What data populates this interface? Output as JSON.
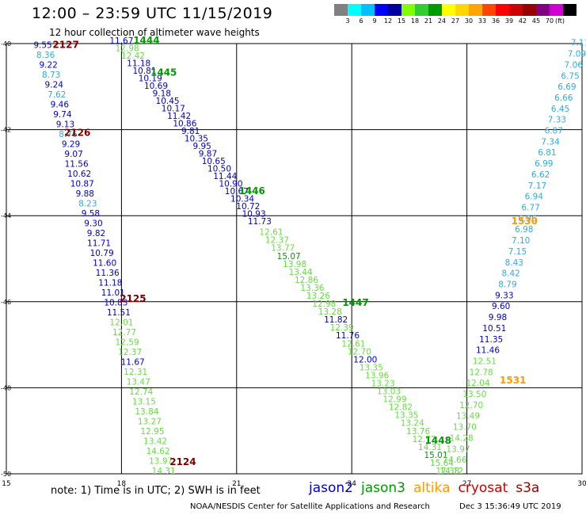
{
  "header": {
    "title": "12:00 – 23:59 UTC 11/15/2019",
    "subtitle": "12 hour collection of altimeter wave heights"
  },
  "colorbar": {
    "colors": [
      "#808080",
      "#00ffff",
      "#00bfff",
      "#0000ff",
      "#0000a0",
      "#7fff00",
      "#32cd32",
      "#009900",
      "#ffff00",
      "#ffd700",
      "#ffa500",
      "#ff4500",
      "#ff0000",
      "#cc0000",
      "#990000",
      "#800080",
      "#d000d0",
      "#000000"
    ],
    "ticks": [
      "3",
      "6",
      "9",
      "12",
      "15",
      "18",
      "21",
      "24",
      "27",
      "30",
      "33",
      "36",
      "39",
      "42",
      "45",
      "70",
      "(ft)"
    ]
  },
  "axes": {
    "x_ticks": [
      "15",
      "18",
      "21",
      "24",
      "27",
      "30"
    ],
    "y_ticks": [
      "-40",
      "-42",
      "-44",
      "-46",
      "-48",
      "-50"
    ],
    "x_range": [
      15,
      30
    ],
    "y_range": [
      -50,
      -40
    ]
  },
  "colors": {
    "jason2": "#0000cc",
    "jason3": "#009900",
    "altika": "#ff9900",
    "cryosat": "#cc0000",
    "s3a": "#990000",
    "light_green": "#66dd44",
    "light_blue": "#33aadd",
    "dark_red": "#7a0000"
  },
  "passes": [
    {
      "label": "2127",
      "lon": 16.55,
      "lat": -40.1,
      "color": "dark_red"
    },
    {
      "label": "2126",
      "lon": 16.85,
      "lat": -42.15,
      "color": "dark_red"
    },
    {
      "label": "2125",
      "lon": 18.3,
      "lat": -46.0,
      "color": "dark_red"
    },
    {
      "label": "2124",
      "lon": 19.6,
      "lat": -49.8,
      "color": "dark_red"
    },
    {
      "label": "1444",
      "lon": 18.65,
      "lat": -40.0,
      "color": "jason3"
    },
    {
      "label": "1445",
      "lon": 19.1,
      "lat": -40.75,
      "color": "jason3"
    },
    {
      "label": "1446",
      "lon": 21.4,
      "lat": -43.5,
      "color": "jason3"
    },
    {
      "label": "1447",
      "lon": 24.1,
      "lat": -46.1,
      "color": "jason3"
    },
    {
      "label": "1448",
      "lon": 26.25,
      "lat": -49.3,
      "color": "jason3"
    },
    {
      "label": "1530",
      "lon": 28.5,
      "lat": -44.2,
      "color": "altika"
    },
    {
      "label": "1531",
      "lon": 28.2,
      "lat": -47.9,
      "color": "altika"
    }
  ],
  "tracks": [
    {
      "name": "s3a-a",
      "start": [
        15.95,
        -40.1
      ],
      "end": [
        19.1,
        -50.0
      ],
      "values": [
        {
          "v": "9.55",
          "c": "jason2"
        },
        {
          "v": "8.36",
          "c": "light_blue"
        },
        {
          "v": "9.22",
          "c": "jason2"
        },
        {
          "v": "8.73",
          "c": "light_blue"
        },
        {
          "v": "9.24",
          "c": "jason2"
        },
        {
          "v": "7.62",
          "c": "light_blue"
        },
        {
          "v": "9.46",
          "c": "jason2"
        },
        {
          "v": "9.74",
          "c": "jason2"
        },
        {
          "v": "9.13",
          "c": "jason2"
        },
        {
          "v": "8.76",
          "c": "light_blue"
        },
        {
          "v": "9.29",
          "c": "jason2"
        },
        {
          "v": "9.07",
          "c": "jason2"
        },
        {
          "v": "11.56",
          "c": "jason2"
        },
        {
          "v": "10.62",
          "c": "jason2"
        },
        {
          "v": "10.87",
          "c": "jason2"
        },
        {
          "v": "9.88",
          "c": "jason2"
        },
        {
          "v": "8.23",
          "c": "light_blue"
        },
        {
          "v": "9.58",
          "c": "jason2"
        },
        {
          "v": "9.30",
          "c": "jason2"
        },
        {
          "v": "9.82",
          "c": "jason2"
        },
        {
          "v": "11.71",
          "c": "jason2"
        },
        {
          "v": "10.79",
          "c": "jason2"
        },
        {
          "v": "11.60",
          "c": "jason2"
        },
        {
          "v": "11.36",
          "c": "jason2"
        },
        {
          "v": "11.18",
          "c": "jason2"
        },
        {
          "v": "11.01",
          "c": "jason2"
        },
        {
          "v": "10.83",
          "c": "jason2"
        },
        {
          "v": "11.51",
          "c": "jason2"
        },
        {
          "v": "12.01",
          "c": "light_green"
        },
        {
          "v": "12.77",
          "c": "light_green"
        },
        {
          "v": "12.59",
          "c": "light_green"
        },
        {
          "v": "12.37",
          "c": "light_green"
        },
        {
          "v": "11.67",
          "c": "jason2"
        },
        {
          "v": "12.31",
          "c": "light_green"
        },
        {
          "v": "13.47",
          "c": "light_green"
        },
        {
          "v": "12.74",
          "c": "light_green"
        },
        {
          "v": "13.15",
          "c": "light_green"
        },
        {
          "v": "13.84",
          "c": "light_green"
        },
        {
          "v": "13.27",
          "c": "light_green"
        },
        {
          "v": "12.95",
          "c": "light_green"
        },
        {
          "v": "13.42",
          "c": "light_green"
        },
        {
          "v": "14.62",
          "c": "light_green"
        },
        {
          "v": "13.97",
          "c": "light_green"
        },
        {
          "v": "14.31",
          "c": "light_green"
        }
      ]
    },
    {
      "name": "jason3-a",
      "start": [
        18.0,
        -40.0
      ],
      "end": [
        21.6,
        -44.2
      ],
      "values": [
        {
          "v": "11.67",
          "c": "jason2"
        },
        {
          "v": "12.98",
          "c": "light_green"
        },
        {
          "v": "12.42",
          "c": "light_green"
        },
        {
          "v": "11.18",
          "c": "jason2"
        },
        {
          "v": "10.81",
          "c": "jason2"
        },
        {
          "v": "10.19",
          "c": "jason2"
        },
        {
          "v": "10.69",
          "c": "jason2"
        },
        {
          "v": "9.18",
          "c": "jason2"
        },
        {
          "v": "10.45",
          "c": "jason2"
        },
        {
          "v": "10.17",
          "c": "jason2"
        },
        {
          "v": "11.42",
          "c": "jason2"
        },
        {
          "v": "10.86",
          "c": "jason2"
        },
        {
          "v": "9.81",
          "c": "jason2"
        },
        {
          "v": "10.35",
          "c": "jason2"
        },
        {
          "v": "9.95",
          "c": "jason2"
        },
        {
          "v": "9.87",
          "c": "jason2"
        },
        {
          "v": "10.65",
          "c": "jason2"
        },
        {
          "v": "10.50",
          "c": "jason2"
        },
        {
          "v": "11.44",
          "c": "jason2"
        },
        {
          "v": "10.90",
          "c": "jason2"
        },
        {
          "v": "10.67",
          "c": "jason2"
        },
        {
          "v": "10.34",
          "c": "jason2"
        },
        {
          "v": "10.72",
          "c": "jason2"
        },
        {
          "v": "10.93",
          "c": "jason2"
        },
        {
          "v": "11.73",
          "c": "jason2"
        }
      ]
    },
    {
      "name": "jason3-b",
      "start": [
        21.9,
        -44.45
      ],
      "end": [
        26.5,
        -50.0
      ],
      "values": [
        {
          "v": "12.61",
          "c": "light_green"
        },
        {
          "v": "12.37",
          "c": "light_green"
        },
        {
          "v": "13.77",
          "c": "light_green"
        },
        {
          "v": "15.07",
          "c": "jason3"
        },
        {
          "v": "13.98",
          "c": "light_green"
        },
        {
          "v": "13.44",
          "c": "light_green"
        },
        {
          "v": "12.86",
          "c": "light_green"
        },
        {
          "v": "13.36",
          "c": "light_green"
        },
        {
          "v": "13.26",
          "c": "light_green"
        },
        {
          "v": "12.98",
          "c": "light_green"
        },
        {
          "v": "13.28",
          "c": "light_green"
        },
        {
          "v": "11.82",
          "c": "jason2"
        },
        {
          "v": "12.39",
          "c": "light_green"
        },
        {
          "v": "11.76",
          "c": "jason2"
        },
        {
          "v": "12.61",
          "c": "light_green"
        },
        {
          "v": "12.70",
          "c": "light_green"
        },
        {
          "v": "12.00",
          "c": "jason2"
        },
        {
          "v": "13.35",
          "c": "light_green"
        },
        {
          "v": "13.96",
          "c": "light_green"
        },
        {
          "v": "13.23",
          "c": "light_green"
        },
        {
          "v": "13.03",
          "c": "light_green"
        },
        {
          "v": "12.99",
          "c": "light_green"
        },
        {
          "v": "12.82",
          "c": "light_green"
        },
        {
          "v": "13.35",
          "c": "light_green"
        },
        {
          "v": "13.24",
          "c": "light_green"
        },
        {
          "v": "13.76",
          "c": "light_green"
        },
        {
          "v": "12.72",
          "c": "light_green"
        },
        {
          "v": "14.31",
          "c": "light_green"
        },
        {
          "v": "15.01",
          "c": "jason3"
        },
        {
          "v": "15.64",
          "c": "light_green"
        },
        {
          "v": "17.38",
          "c": "light_green"
        }
      ]
    },
    {
      "name": "altika-a",
      "start": [
        29.95,
        -40.05
      ],
      "end": [
        26.6,
        -50.0
      ],
      "values": [
        {
          "v": "7.11",
          "c": "light_blue"
        },
        {
          "v": "7.09",
          "c": "light_blue"
        },
        {
          "v": "7.06",
          "c": "light_blue"
        },
        {
          "v": "6.75",
          "c": "light_blue"
        },
        {
          "v": "6.69",
          "c": "light_blue"
        },
        {
          "v": "6.66",
          "c": "light_blue"
        },
        {
          "v": "6.45",
          "c": "light_blue"
        },
        {
          "v": "7.33",
          "c": "light_blue"
        },
        {
          "v": "6.87",
          "c": "light_blue"
        },
        {
          "v": "7.34",
          "c": "light_blue"
        },
        {
          "v": "6.81",
          "c": "light_blue"
        },
        {
          "v": "6.99",
          "c": "light_blue"
        },
        {
          "v": "6.62",
          "c": "light_blue"
        },
        {
          "v": "7.17",
          "c": "light_blue"
        },
        {
          "v": "6.94",
          "c": "light_blue"
        },
        {
          "v": "6.77",
          "c": "light_blue"
        },
        {
          "v": "6.96",
          "c": "light_blue"
        },
        {
          "v": "6.98",
          "c": "light_blue"
        },
        {
          "v": "7.10",
          "c": "light_blue"
        },
        {
          "v": "7.15",
          "c": "light_blue"
        },
        {
          "v": "8.43",
          "c": "light_blue"
        },
        {
          "v": "8.42",
          "c": "light_blue"
        },
        {
          "v": "8.79",
          "c": "light_blue"
        },
        {
          "v": "9.33",
          "c": "jason2"
        },
        {
          "v": "9.60",
          "c": "jason2"
        },
        {
          "v": "9.98",
          "c": "jason2"
        },
        {
          "v": "10.51",
          "c": "jason2"
        },
        {
          "v": "11.35",
          "c": "jason2"
        },
        {
          "v": "11.46",
          "c": "jason2"
        },
        {
          "v": "12.51",
          "c": "light_green"
        },
        {
          "v": "12.78",
          "c": "light_green"
        },
        {
          "v": "12.04",
          "c": "light_green"
        },
        {
          "v": "13.50",
          "c": "light_green"
        },
        {
          "v": "12.70",
          "c": "light_green"
        },
        {
          "v": "13.49",
          "c": "light_green"
        },
        {
          "v": "13.70",
          "c": "light_green"
        },
        {
          "v": "14.28",
          "c": "light_green"
        },
        {
          "v": "13.97",
          "c": "light_green"
        },
        {
          "v": "14.66",
          "c": "light_green"
        },
        {
          "v": "14.12",
          "c": "light_green"
        }
      ]
    }
  ],
  "footer": {
    "note": "note:  1) Time is in UTC;  2) SWH is in feet",
    "legend": [
      {
        "label": "jason2",
        "color": "jason2"
      },
      {
        "label": "jason3",
        "color": "jason3"
      },
      {
        "label": "altika",
        "color": "altika"
      },
      {
        "label": "cryosat",
        "color": "cryosat"
      },
      {
        "label": "s3a",
        "color": "s3a"
      }
    ],
    "credit": "NOAA/NESDIS Center for Satellite Applications and Research",
    "timestamp": "Dec  3 15:36:49 UTC 2019"
  }
}
